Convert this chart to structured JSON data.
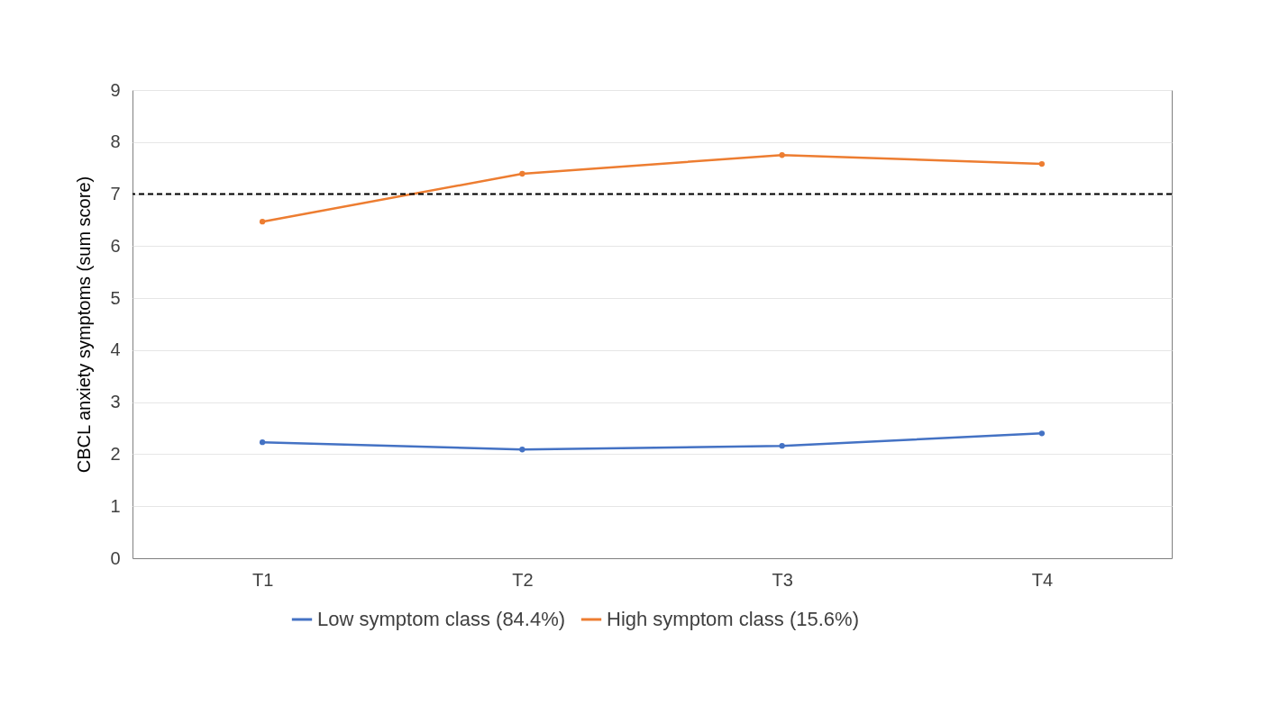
{
  "chart_data": {
    "type": "line",
    "ylabel": "CBCL anxiety symptoms (sum score)",
    "categories": [
      "T1",
      "T2",
      "T3",
      "T4"
    ],
    "series": [
      {
        "name": "Low symptom class (84.4%)",
        "color": "#4472c4",
        "values": [
          2.23,
          2.09,
          2.16,
          2.4
        ]
      },
      {
        "name": "High symptom class (15.6%)",
        "color": "#ed7d31",
        "values": [
          6.47,
          7.39,
          7.75,
          7.58
        ]
      }
    ],
    "ylim": [
      0,
      9
    ],
    "yticks": [
      0,
      1,
      2,
      3,
      4,
      5,
      6,
      7,
      8,
      9
    ],
    "ref_lines": [
      {
        "axis": "y",
        "value": 7,
        "color": "#000000",
        "line_style": "dashed"
      }
    ],
    "grid": "y",
    "legend": "bottom",
    "marker": "circle",
    "line_style": "solid"
  }
}
